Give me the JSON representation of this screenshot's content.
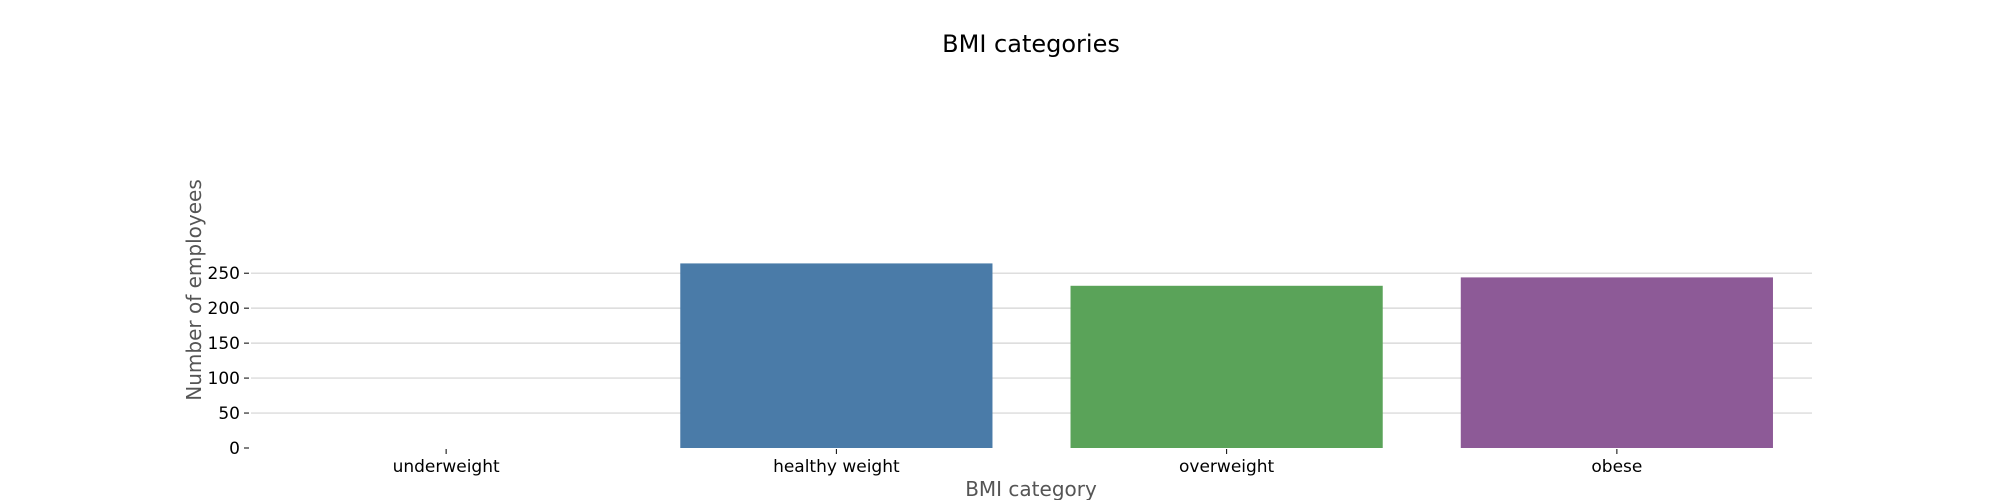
{
  "chart_data": {
    "type": "bar",
    "title": "BMI categories",
    "xlabel": "BMI category",
    "ylabel": "Number of employees",
    "categories": [
      "underweight",
      "healthy weight",
      "overweight",
      "obese"
    ],
    "values": [
      0,
      264,
      232,
      244
    ],
    "colors": [
      "#4a7fb0",
      "#4a7ba8",
      "#5aa359",
      "#8d5a97"
    ],
    "ylim": [
      0,
      270
    ],
    "yticks": [
      0,
      50,
      100,
      150,
      200,
      250
    ],
    "grid": "horizontal",
    "legend": "none"
  }
}
